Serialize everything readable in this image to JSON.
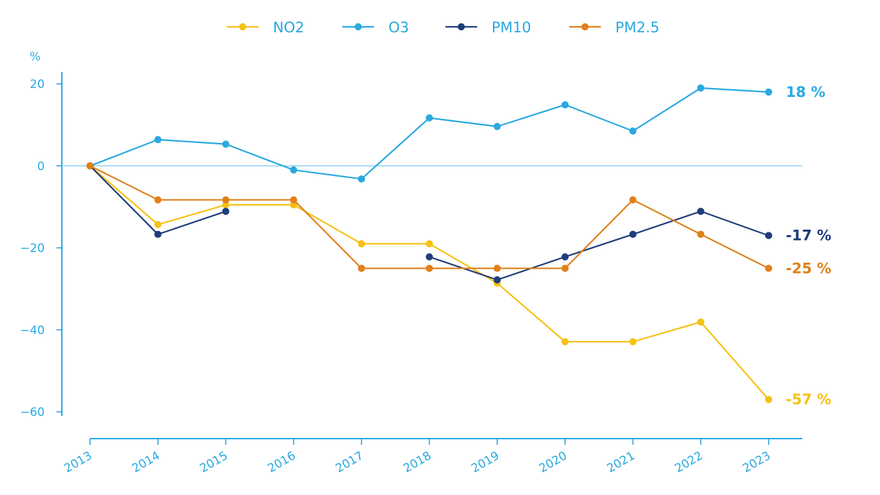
{
  "chart_data": {
    "type": "line",
    "title": "",
    "xlabel": "",
    "ylabel": "%",
    "x": [
      "2013",
      "2014",
      "2015",
      "2016",
      "2017",
      "2018",
      "2019",
      "2020",
      "2021",
      "2022",
      "2023"
    ],
    "ylim": [
      -60,
      20
    ],
    "yticks": [
      20,
      0,
      -20,
      -40,
      -60
    ],
    "ytick_labels": [
      "20",
      "0",
      "−20",
      "−40",
      "−60"
    ],
    "grid": false,
    "zero_line": true,
    "legend_position": "top-center",
    "series": [
      {
        "name": "NO2",
        "color": "#f5c115",
        "values": [
          0,
          -14.3,
          -9.5,
          -9.5,
          -19,
          -19,
          -28.6,
          -42.9,
          -42.9,
          -38.1,
          -57
        ],
        "end_label": "-57 %"
      },
      {
        "name": "O3",
        "color": "#29a9e0",
        "values": [
          0,
          6.4,
          5.3,
          -1,
          -3.2,
          11.7,
          9.6,
          14.9,
          8.5,
          19,
          18
        ],
        "end_label": "18 %"
      },
      {
        "name": "PM10",
        "color": "#1f3d7a",
        "values": [
          0,
          -16.7,
          -11.1,
          null,
          null,
          -22.2,
          -27.8,
          -22.2,
          -16.7,
          -11.1,
          -17
        ],
        "end_label": "-17 %"
      },
      {
        "name": "PM2.5",
        "color": "#e0801a",
        "values": [
          0,
          -8.3,
          -8.3,
          -8.3,
          -25,
          -25,
          -25,
          -25,
          -8.3,
          -16.7,
          -25
        ],
        "end_label": "-25 %"
      }
    ]
  }
}
